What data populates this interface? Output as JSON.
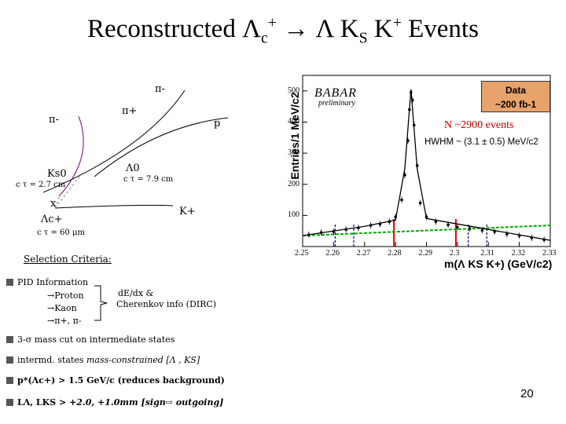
{
  "title": {
    "prefix": "Reconstructed ",
    "lambda_c": "Λ",
    "c_sub": "c",
    "plus": "+",
    "arrow": " → Λ K",
    "s_sub": "S",
    "kplus": " K",
    "kplus_sup": "+",
    "suffix": "  Events"
  },
  "diagram": {
    "pi_minus_top": "π-",
    "pi_plus": "π+",
    "pi_minus_left": "π-",
    "proton": "p",
    "ks0": "Ks0",
    "ks0_ctau": "c τ = 2.7 cm",
    "lambda0": "Λ0",
    "lambda0_ctau": "c τ = 7.9 cm",
    "x_mark": "x",
    "lambda_c": "Λc+",
    "lambda_c_ctau": "c τ = 60 μm",
    "k_plus": "K+"
  },
  "plot": {
    "babar": "BABAR",
    "preliminary": "preliminary",
    "legend_line1": "Data",
    "legend_line2": "~200 fb-1",
    "n_events": "N ~2900 events",
    "hwhm": "HWHM ~ (3.1 ± 0.5) MeV/c2",
    "y_label": "Entries/1 MeV/c2",
    "x_label": "m(Λ KS K+) (GeV/c2)"
  },
  "chart_data": {
    "type": "scatter",
    "title": "",
    "xlabel": "m(Λ KS K+) (GeV/c2)",
    "ylabel": "Entries/1 MeV/c2",
    "xlim": [
      2.25,
      2.33
    ],
    "ylim": [
      0,
      550
    ],
    "x_ticks": [
      "2.25",
      "2.26",
      "2.27",
      "2.28",
      "2.29",
      "2.3",
      "2.31",
      "2.32",
      "2.33"
    ],
    "y_ticks": [
      "100",
      "200",
      "300",
      "400",
      "500"
    ],
    "series": [
      {
        "name": "Data",
        "x": [
          2.252,
          2.256,
          2.26,
          2.264,
          2.268,
          2.272,
          2.275,
          2.278,
          2.28,
          2.282,
          2.283,
          2.284,
          2.2845,
          2.285,
          2.2855,
          2.286,
          2.287,
          2.288,
          2.29,
          2.293,
          2.297,
          2.3,
          2.304,
          2.308,
          2.312,
          2.316,
          2.32,
          2.324,
          2.328
        ],
        "y": [
          38,
          45,
          48,
          55,
          60,
          68,
          72,
          80,
          95,
          150,
          230,
          340,
          440,
          495,
          470,
          390,
          260,
          140,
          95,
          80,
          70,
          62,
          58,
          52,
          48,
          40,
          35,
          28,
          22
        ]
      },
      {
        "name": "Fit",
        "x": [
          2.25,
          2.27,
          2.28,
          2.283,
          2.285,
          2.287,
          2.29,
          2.31,
          2.33
        ],
        "y": [
          35,
          65,
          85,
          250,
          505,
          250,
          90,
          55,
          20
        ]
      },
      {
        "name": "Background",
        "x": [
          2.25,
          2.33
        ],
        "y": [
          35,
          68
        ]
      }
    ],
    "signal_window": [
      2.2795,
      2.2995
    ],
    "sideband_markers": [
      2.2605,
      2.2665,
      2.3035,
      2.3095
    ]
  },
  "selection": {
    "heading": "Selection Criteria:",
    "pid_label": "PID Information",
    "pid_items": [
      "→Proton",
      "→Kaon",
      "→π+, π-"
    ],
    "pid_note_line1": "dE/dx &",
    "pid_note_line2": "Cherenkov info (DIRC)",
    "bullet2": "3-σ mass cut on intermediate states",
    "bullet3_a": "intermd. states ",
    "bullet3_b": "mass-constrained [Λ , KS]",
    "bullet4": "p*(Λc+) > 1.5 GeV/c (reduces background)",
    "bullet5_a": "LΛ, LKS > ",
    "bullet5_b": "+2.0, +1.0mm [sign⇨ outgoing]"
  },
  "page_number": "20",
  "colors": {
    "signal": "#e00000",
    "sideband": "#000080",
    "background_fit": "#00aa00",
    "diagram_track": "#800080",
    "legend": "#e8a36a"
  }
}
